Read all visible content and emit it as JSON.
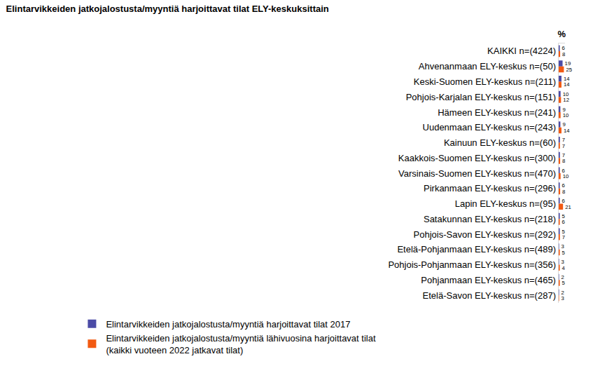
{
  "chart_data": {
    "type": "bar",
    "orientation": "horizontal",
    "title": "Elintarvikkeiden jatkojalostusta/myyntiä harjoittavat tilat ELY-keskuksittain",
    "xlabel": "%",
    "categories": [
      "KAIKKI n=(4224)",
      "Ahvenanmaan ELY-keskus n=(50)",
      "Keski-Suomen ELY-keskus n=(211)",
      "Pohjois-Karjalan ELY-keskus n=(151)",
      "Hämeen ELY-keskus n=(241)",
      "Uudenmaan ELY-keskus n=(243)",
      "Kainuun ELY-keskus n=(60)",
      "Kaakkois-Suomen ELY-keskus n=(300)",
      "Varsinais-Suomen ELY-keskus n=(470)",
      "Pirkanmaan ELY-keskus n=(296)",
      "Lapin ELY-keskus n=(95)",
      "Satakunnan ELY-keskus n=(218)",
      "Pohjois-Savon ELY-keskus n=(292)",
      "Etelä-Pohjanmaan ELY-keskus n=(489)",
      "Pohjois-Pohjanmaan ELY-keskus n=(356)",
      "Pohjanmaan ELY-keskus n=(465)",
      "Etelä-Savon ELY-keskus n=(287)"
    ],
    "series": [
      {
        "name": "Elintarvikkeiden jatkojalostusta/myyntiä harjoittavat tilat 2017",
        "color": "#4b4ba6",
        "values": [
          6,
          19,
          14,
          10,
          9,
          9,
          7,
          7,
          6,
          6,
          6,
          5,
          5,
          3,
          3,
          2,
          2
        ]
      },
      {
        "name": "Elintarvikkeiden jatkojalostusta/myyntiä lähivuosina harjoittavat tilat\n(kaikki vuoteen 2022 jatkavat tilat)",
        "color": "#f25a12",
        "values": [
          8,
          25,
          14,
          12,
          10,
          14,
          7,
          8,
          10,
          8,
          21,
          6,
          7,
          5,
          4,
          5,
          3
        ]
      }
    ],
    "xlim": [
      0,
      30
    ],
    "xticks": [],
    "tick_labels": "y",
    "data_labels": true,
    "grid": false,
    "legend": "bottom"
  }
}
